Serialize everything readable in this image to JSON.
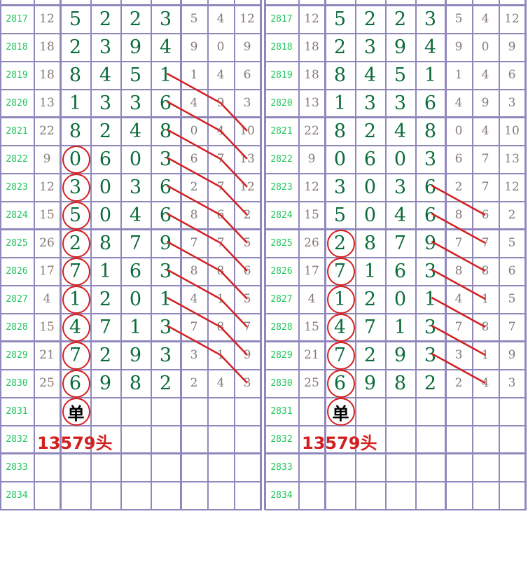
{
  "colors": {
    "grid": "#9088bd",
    "period": "#22c55e",
    "digit": "#0b6b3a",
    "small": "#857a76",
    "mark": "#d42020"
  },
  "rows": [
    {
      "period": "2817",
      "sum": "12",
      "digits": [
        "5",
        "2",
        "2",
        "3"
      ],
      "small": [
        "5",
        "4",
        "12"
      ]
    },
    {
      "period": "2818",
      "sum": "18",
      "digits": [
        "2",
        "3",
        "9",
        "4"
      ],
      "small": [
        "9",
        "0",
        "9"
      ]
    },
    {
      "period": "2819",
      "sum": "18",
      "digits": [
        "8",
        "4",
        "5",
        "1"
      ],
      "small": [
        "1",
        "4",
        "6"
      ]
    },
    {
      "period": "2820",
      "sum": "13",
      "digits": [
        "1",
        "3",
        "3",
        "6"
      ],
      "small": [
        "4",
        "9",
        "3"
      ]
    },
    {
      "period": "2821",
      "sum": "22",
      "digits": [
        "8",
        "2",
        "4",
        "8"
      ],
      "small": [
        "0",
        "4",
        "10"
      ]
    },
    {
      "period": "2822",
      "sum": "9",
      "digits": [
        "0",
        "6",
        "0",
        "3"
      ],
      "small": [
        "6",
        "7",
        "13"
      ]
    },
    {
      "period": "2823",
      "sum": "12",
      "digits": [
        "3",
        "0",
        "3",
        "6"
      ],
      "small": [
        "2",
        "7",
        "12"
      ]
    },
    {
      "period": "2824",
      "sum": "15",
      "digits": [
        "5",
        "0",
        "4",
        "6"
      ],
      "small": [
        "8",
        "6",
        "2"
      ]
    },
    {
      "period": "2825",
      "sum": "26",
      "digits": [
        "2",
        "8",
        "7",
        "9"
      ],
      "small": [
        "7",
        "7",
        "5"
      ]
    },
    {
      "period": "2826",
      "sum": "17",
      "digits": [
        "7",
        "1",
        "6",
        "3"
      ],
      "small": [
        "8",
        "8",
        "6"
      ]
    },
    {
      "period": "2827",
      "sum": "4",
      "digits": [
        "1",
        "2",
        "0",
        "1"
      ],
      "small": [
        "4",
        "1",
        "5"
      ]
    },
    {
      "period": "2828",
      "sum": "15",
      "digits": [
        "4",
        "7",
        "1",
        "3"
      ],
      "small": [
        "7",
        "8",
        "7"
      ]
    },
    {
      "period": "2829",
      "sum": "21",
      "digits": [
        "7",
        "2",
        "9",
        "3"
      ],
      "small": [
        "3",
        "1",
        "9"
      ]
    },
    {
      "period": "2830",
      "sum": "25",
      "digits": [
        "6",
        "9",
        "8",
        "2"
      ],
      "small": [
        "2",
        "4",
        "3"
      ]
    },
    {
      "period": "2831",
      "sum": "",
      "digits": [
        "",
        "",
        "",
        ""
      ],
      "small": [
        "",
        "",
        ""
      ]
    },
    {
      "period": "2832",
      "sum": "",
      "digits": [
        "",
        "",
        "",
        ""
      ],
      "small": [
        "",
        "",
        ""
      ]
    },
    {
      "period": "2833",
      "sum": "",
      "digits": [
        "",
        "",
        "",
        ""
      ],
      "small": [
        "",
        "",
        ""
      ]
    },
    {
      "period": "2834",
      "sum": "",
      "digits": [
        "",
        "",
        "",
        ""
      ],
      "small": [
        "",
        "",
        ""
      ]
    }
  ],
  "panels": [
    {
      "circled_periods": [
        "2822",
        "2823",
        "2824",
        "2825",
        "2826",
        "2827",
        "2828",
        "2829",
        "2830"
      ],
      "trend_start_periods": [
        "2819",
        "2820",
        "2821",
        "2822",
        "2823",
        "2824",
        "2825",
        "2826",
        "2827",
        "2828"
      ],
      "trend_steps": 2,
      "prediction_symbol": "单",
      "prediction_text": "13579头"
    },
    {
      "circled_periods": [
        "2825",
        "2826",
        "2827",
        "2828",
        "2829",
        "2830"
      ],
      "trend_start_periods": [
        "2823",
        "2824",
        "2825",
        "2826",
        "2827",
        "2828",
        "2829"
      ],
      "trend_steps": 1,
      "prediction_symbol": "单",
      "prediction_text": "13579头"
    }
  ]
}
